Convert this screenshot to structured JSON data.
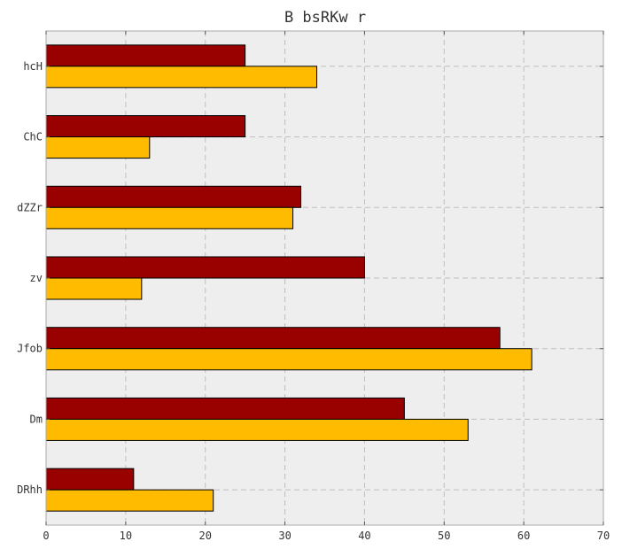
{
  "chart_data": {
    "type": "bar",
    "orientation": "horizontal",
    "title": "B bsRKw r",
    "xlabel": "",
    "ylabel": "",
    "categories": [
      "hcH",
      "ChC",
      "dZZr",
      "zv",
      "Jfob",
      "Dm",
      "DRhh"
    ],
    "series": [
      {
        "values": [
          25,
          25,
          32,
          40,
          57,
          45,
          11
        ],
        "color": "#990000"
      },
      {
        "values": [
          34,
          13,
          31,
          12,
          61,
          53,
          21
        ],
        "color": "#ffbb00"
      }
    ],
    "xlim": [
      0,
      70
    ],
    "xticks": [
      0,
      10,
      20,
      30,
      40,
      50,
      60,
      70
    ],
    "grid": true,
    "background_color": "#eeeeee"
  }
}
